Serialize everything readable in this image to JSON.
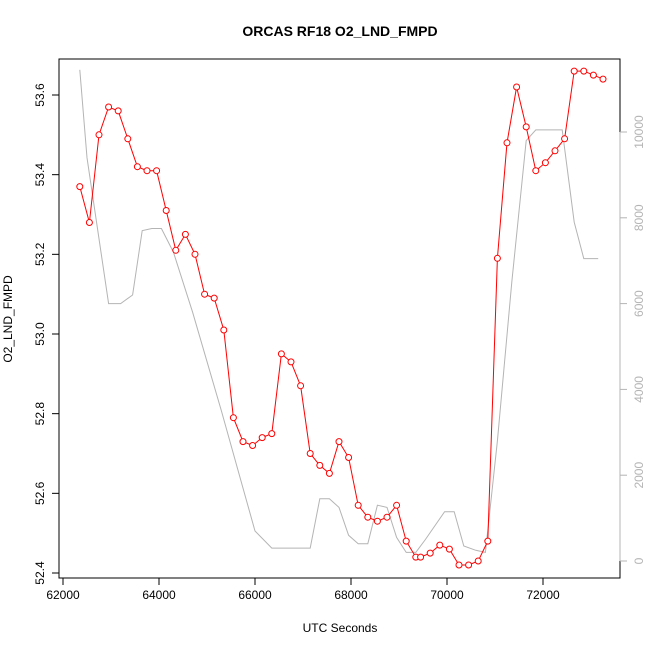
{
  "chart_data": {
    "type": "line",
    "title": "ORCAS RF18 O2_LND_FMPD",
    "xlabel": "UTC Seconds",
    "ylabel": "O2_LND_FMPD",
    "xlim": [
      62000,
      73600
    ],
    "ylim": [
      52.4,
      53.7
    ],
    "y2lim": [
      0,
      11500
    ],
    "x_ticks": [
      62000,
      64000,
      66000,
      68000,
      70000,
      72000
    ],
    "y_ticks": [
      52.4,
      52.6,
      52.8,
      53.0,
      53.2,
      53.4,
      53.6
    ],
    "y2_ticks": [
      0,
      2000,
      4000,
      6000,
      8000,
      10000
    ],
    "grid": false,
    "colors": {
      "primary": "#ff0000",
      "secondary": "#b4b4b4",
      "axis": "#000000"
    },
    "series": [
      {
        "axis": "left",
        "style": "line+open-circles",
        "color": "#ff0000",
        "points": [
          [
            62350,
            53.37
          ],
          [
            62550,
            53.28
          ],
          [
            62750,
            53.5
          ],
          [
            62950,
            53.57
          ],
          [
            63150,
            53.56
          ],
          [
            63350,
            53.49
          ],
          [
            63550,
            53.42
          ],
          [
            63750,
            53.41
          ],
          [
            63950,
            53.41
          ],
          [
            64150,
            53.31
          ],
          [
            64350,
            53.21
          ],
          [
            64550,
            53.25
          ],
          [
            64750,
            53.2
          ],
          [
            64950,
            53.1
          ],
          [
            65150,
            53.09
          ],
          [
            65350,
            53.01
          ],
          [
            65550,
            52.79
          ],
          [
            65750,
            52.73
          ],
          [
            65950,
            52.72
          ],
          [
            66150,
            52.74
          ],
          [
            66350,
            52.75
          ],
          [
            66550,
            52.95
          ],
          [
            66750,
            52.93
          ],
          [
            66950,
            52.87
          ],
          [
            67150,
            52.7
          ],
          [
            67350,
            52.67
          ],
          [
            67550,
            52.65
          ],
          [
            67750,
            52.73
          ],
          [
            67950,
            52.69
          ],
          [
            68150,
            52.57
          ],
          [
            68350,
            52.54
          ],
          [
            68550,
            52.53
          ],
          [
            68750,
            52.54
          ],
          [
            68950,
            52.57
          ],
          [
            69150,
            52.48
          ],
          [
            69350,
            52.44
          ],
          [
            69450,
            52.44
          ],
          [
            69650,
            52.45
          ],
          [
            69850,
            52.47
          ],
          [
            70050,
            52.46
          ],
          [
            70250,
            52.42
          ],
          [
            70450,
            52.42
          ],
          [
            70650,
            52.43
          ],
          [
            70850,
            52.48
          ],
          [
            71050,
            53.19
          ],
          [
            71250,
            53.48
          ],
          [
            71450,
            53.62
          ],
          [
            71650,
            53.52
          ],
          [
            71850,
            53.41
          ],
          [
            72050,
            53.43
          ],
          [
            72250,
            53.46
          ],
          [
            72450,
            53.49
          ],
          [
            72650,
            53.66
          ],
          [
            72850,
            53.66
          ],
          [
            73050,
            53.65
          ],
          [
            73250,
            53.64
          ]
        ]
      },
      {
        "axis": "right",
        "style": "line",
        "color": "#b4b4b4",
        "points": [
          [
            62350,
            11450
          ],
          [
            62500,
            9400
          ],
          [
            62950,
            6000
          ],
          [
            63200,
            6000
          ],
          [
            63450,
            6200
          ],
          [
            63650,
            7700
          ],
          [
            63850,
            7750
          ],
          [
            64050,
            7750
          ],
          [
            64300,
            7200
          ],
          [
            64700,
            5800
          ],
          [
            65300,
            3500
          ],
          [
            65750,
            1700
          ],
          [
            66000,
            700
          ],
          [
            66350,
            300
          ],
          [
            66900,
            300
          ],
          [
            67150,
            300
          ],
          [
            67350,
            1450
          ],
          [
            67550,
            1450
          ],
          [
            67750,
            1250
          ],
          [
            67950,
            600
          ],
          [
            68150,
            400
          ],
          [
            68350,
            400
          ],
          [
            68550,
            1300
          ],
          [
            68750,
            1250
          ],
          [
            68950,
            550
          ],
          [
            69150,
            200
          ],
          [
            69350,
            200
          ],
          [
            69550,
            500
          ],
          [
            69950,
            1150
          ],
          [
            70150,
            1150
          ],
          [
            70350,
            350
          ],
          [
            70600,
            250
          ],
          [
            70800,
            200
          ],
          [
            71050,
            2800
          ],
          [
            71350,
            6500
          ],
          [
            71650,
            9800
          ],
          [
            71850,
            10050
          ],
          [
            72150,
            10050
          ],
          [
            72400,
            10050
          ],
          [
            72650,
            7900
          ],
          [
            72850,
            7050
          ],
          [
            73150,
            7050
          ]
        ]
      }
    ]
  }
}
